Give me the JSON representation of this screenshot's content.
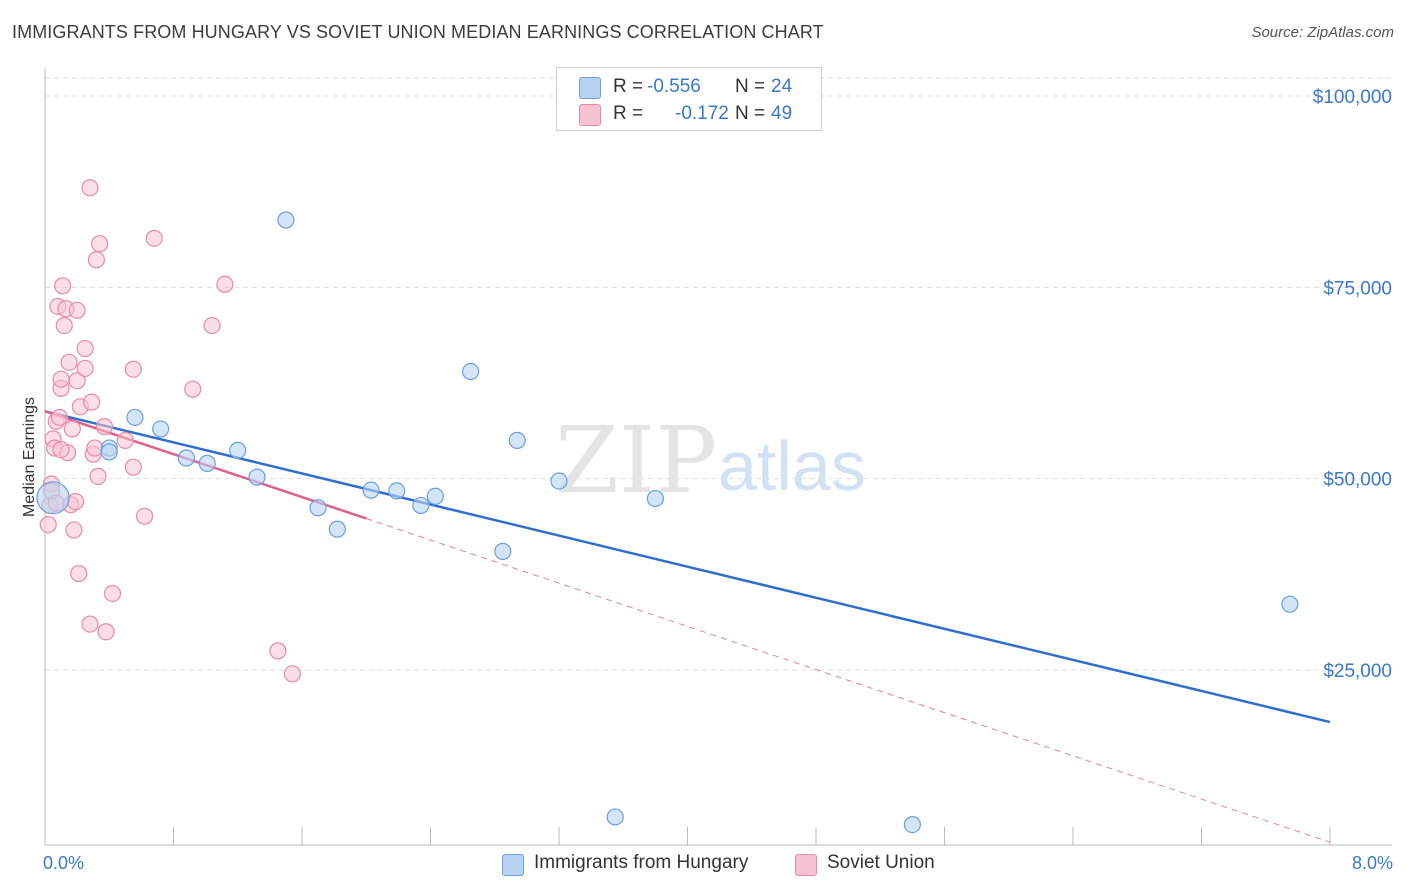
{
  "title": "IMMIGRANTS FROM HUNGARY VS SOVIET UNION MEDIAN EARNINGS CORRELATION CHART",
  "source": "Source: ZipAtlas.com",
  "watermark": {
    "zip": "ZIP",
    "atlas": "atlas"
  },
  "colors": {
    "hungary_fill": "#b8d3f2",
    "hungary_stroke": "#6b9fe0",
    "hungary_line": "#2f6fcc",
    "soviet_fill": "#f7c2d2",
    "soviet_stroke": "#e98aa8",
    "soviet_line": "#e05f8c",
    "tick_text": "#3b79c9",
    "grid": "#dddddd"
  },
  "legend": {
    "r_label": "R =",
    "n_label": "N =",
    "hungary": {
      "r": "-0.556",
      "n": "24"
    },
    "soviet": {
      "r": "-0.172",
      "n": "49"
    }
  },
  "chart_data": {
    "type": "scatter",
    "title": "IMMIGRANTS FROM HUNGARY VS SOVIET UNION MEDIAN EARNINGS CORRELATION CHART",
    "xlabel": "",
    "ylabel": "Median Earnings",
    "xlim": [
      0,
      8.0
    ],
    "ylim": [
      0,
      105000
    ],
    "x_ticks": [
      "0.0%",
      "8.0%"
    ],
    "y_ticks": [
      {
        "value": 25000,
        "label": "$25,000"
      },
      {
        "value": 50000,
        "label": "$50,000"
      },
      {
        "value": 75000,
        "label": "$75,000"
      },
      {
        "value": 100000,
        "label": "$100,000"
      }
    ],
    "grid": "horizontal dashed",
    "legend_position": "top-center",
    "series": [
      {
        "name": "Immigrants from Hungary",
        "points": [
          [
            0.05,
            47500
          ],
          [
            0.4,
            54000
          ],
          [
            0.4,
            53500
          ],
          [
            0.56,
            58000
          ],
          [
            0.72,
            56500
          ],
          [
            0.88,
            52700
          ],
          [
            1.01,
            52000
          ],
          [
            1.2,
            53700
          ],
          [
            1.32,
            50200
          ],
          [
            1.5,
            83800
          ],
          [
            1.7,
            46200
          ],
          [
            1.82,
            43400
          ],
          [
            2.03,
            48500
          ],
          [
            2.19,
            48400
          ],
          [
            2.34,
            46500
          ],
          [
            2.43,
            47700
          ],
          [
            2.65,
            64000
          ],
          [
            2.85,
            40500
          ],
          [
            2.94,
            55000
          ],
          [
            3.2,
            49700
          ],
          [
            3.55,
            5800
          ],
          [
            3.8,
            47400
          ],
          [
            5.4,
            4800
          ],
          [
            7.75,
            33600
          ]
        ],
        "trend": {
          "x0": 0.0,
          "y0": 58800,
          "x1": 8.0,
          "y1": 18200
        }
      },
      {
        "name": "Soviet Union",
        "points": [
          [
            0.02,
            44000
          ],
          [
            0.03,
            46500
          ],
          [
            0.04,
            49300
          ],
          [
            0.04,
            48400
          ],
          [
            0.05,
            55200
          ],
          [
            0.06,
            54000
          ],
          [
            0.07,
            57500
          ],
          [
            0.08,
            72500
          ],
          [
            0.09,
            58000
          ],
          [
            0.1,
            61800
          ],
          [
            0.1,
            63000
          ],
          [
            0.11,
            75200
          ],
          [
            0.12,
            70000
          ],
          [
            0.13,
            72200
          ],
          [
            0.14,
            53400
          ],
          [
            0.15,
            65200
          ],
          [
            0.16,
            46600
          ],
          [
            0.17,
            56500
          ],
          [
            0.18,
            43300
          ],
          [
            0.2,
            72000
          ],
          [
            0.2,
            62800
          ],
          [
            0.21,
            37600
          ],
          [
            0.22,
            59400
          ],
          [
            0.25,
            64400
          ],
          [
            0.25,
            67000
          ],
          [
            0.28,
            88000
          ],
          [
            0.28,
            31000
          ],
          [
            0.29,
            60000
          ],
          [
            0.3,
            53200
          ],
          [
            0.31,
            54000
          ],
          [
            0.32,
            78600
          ],
          [
            0.33,
            50300
          ],
          [
            0.34,
            80700
          ],
          [
            0.37,
            56800
          ],
          [
            0.38,
            30000
          ],
          [
            0.42,
            35000
          ],
          [
            0.5,
            55000
          ],
          [
            0.55,
            51500
          ],
          [
            0.55,
            64300
          ],
          [
            0.62,
            45100
          ],
          [
            0.68,
            81400
          ],
          [
            0.92,
            61700
          ],
          [
            1.04,
            70000
          ],
          [
            1.12,
            75400
          ],
          [
            1.45,
            27500
          ],
          [
            1.54,
            24500
          ],
          [
            0.07,
            46800
          ],
          [
            0.19,
            47000
          ],
          [
            0.1,
            53800
          ]
        ],
        "trend": {
          "x0": 0.0,
          "y0": 58800,
          "x1": 2.0,
          "y1": 44800
        },
        "trend_extrapolated": {
          "x0": 2.0,
          "y0": 44800,
          "x1": 8.0,
          "y1": 2500
        }
      }
    ]
  },
  "bottom_legend": {
    "hungary_label": "Immigrants from Hungary",
    "soviet_label": "Soviet Union"
  }
}
